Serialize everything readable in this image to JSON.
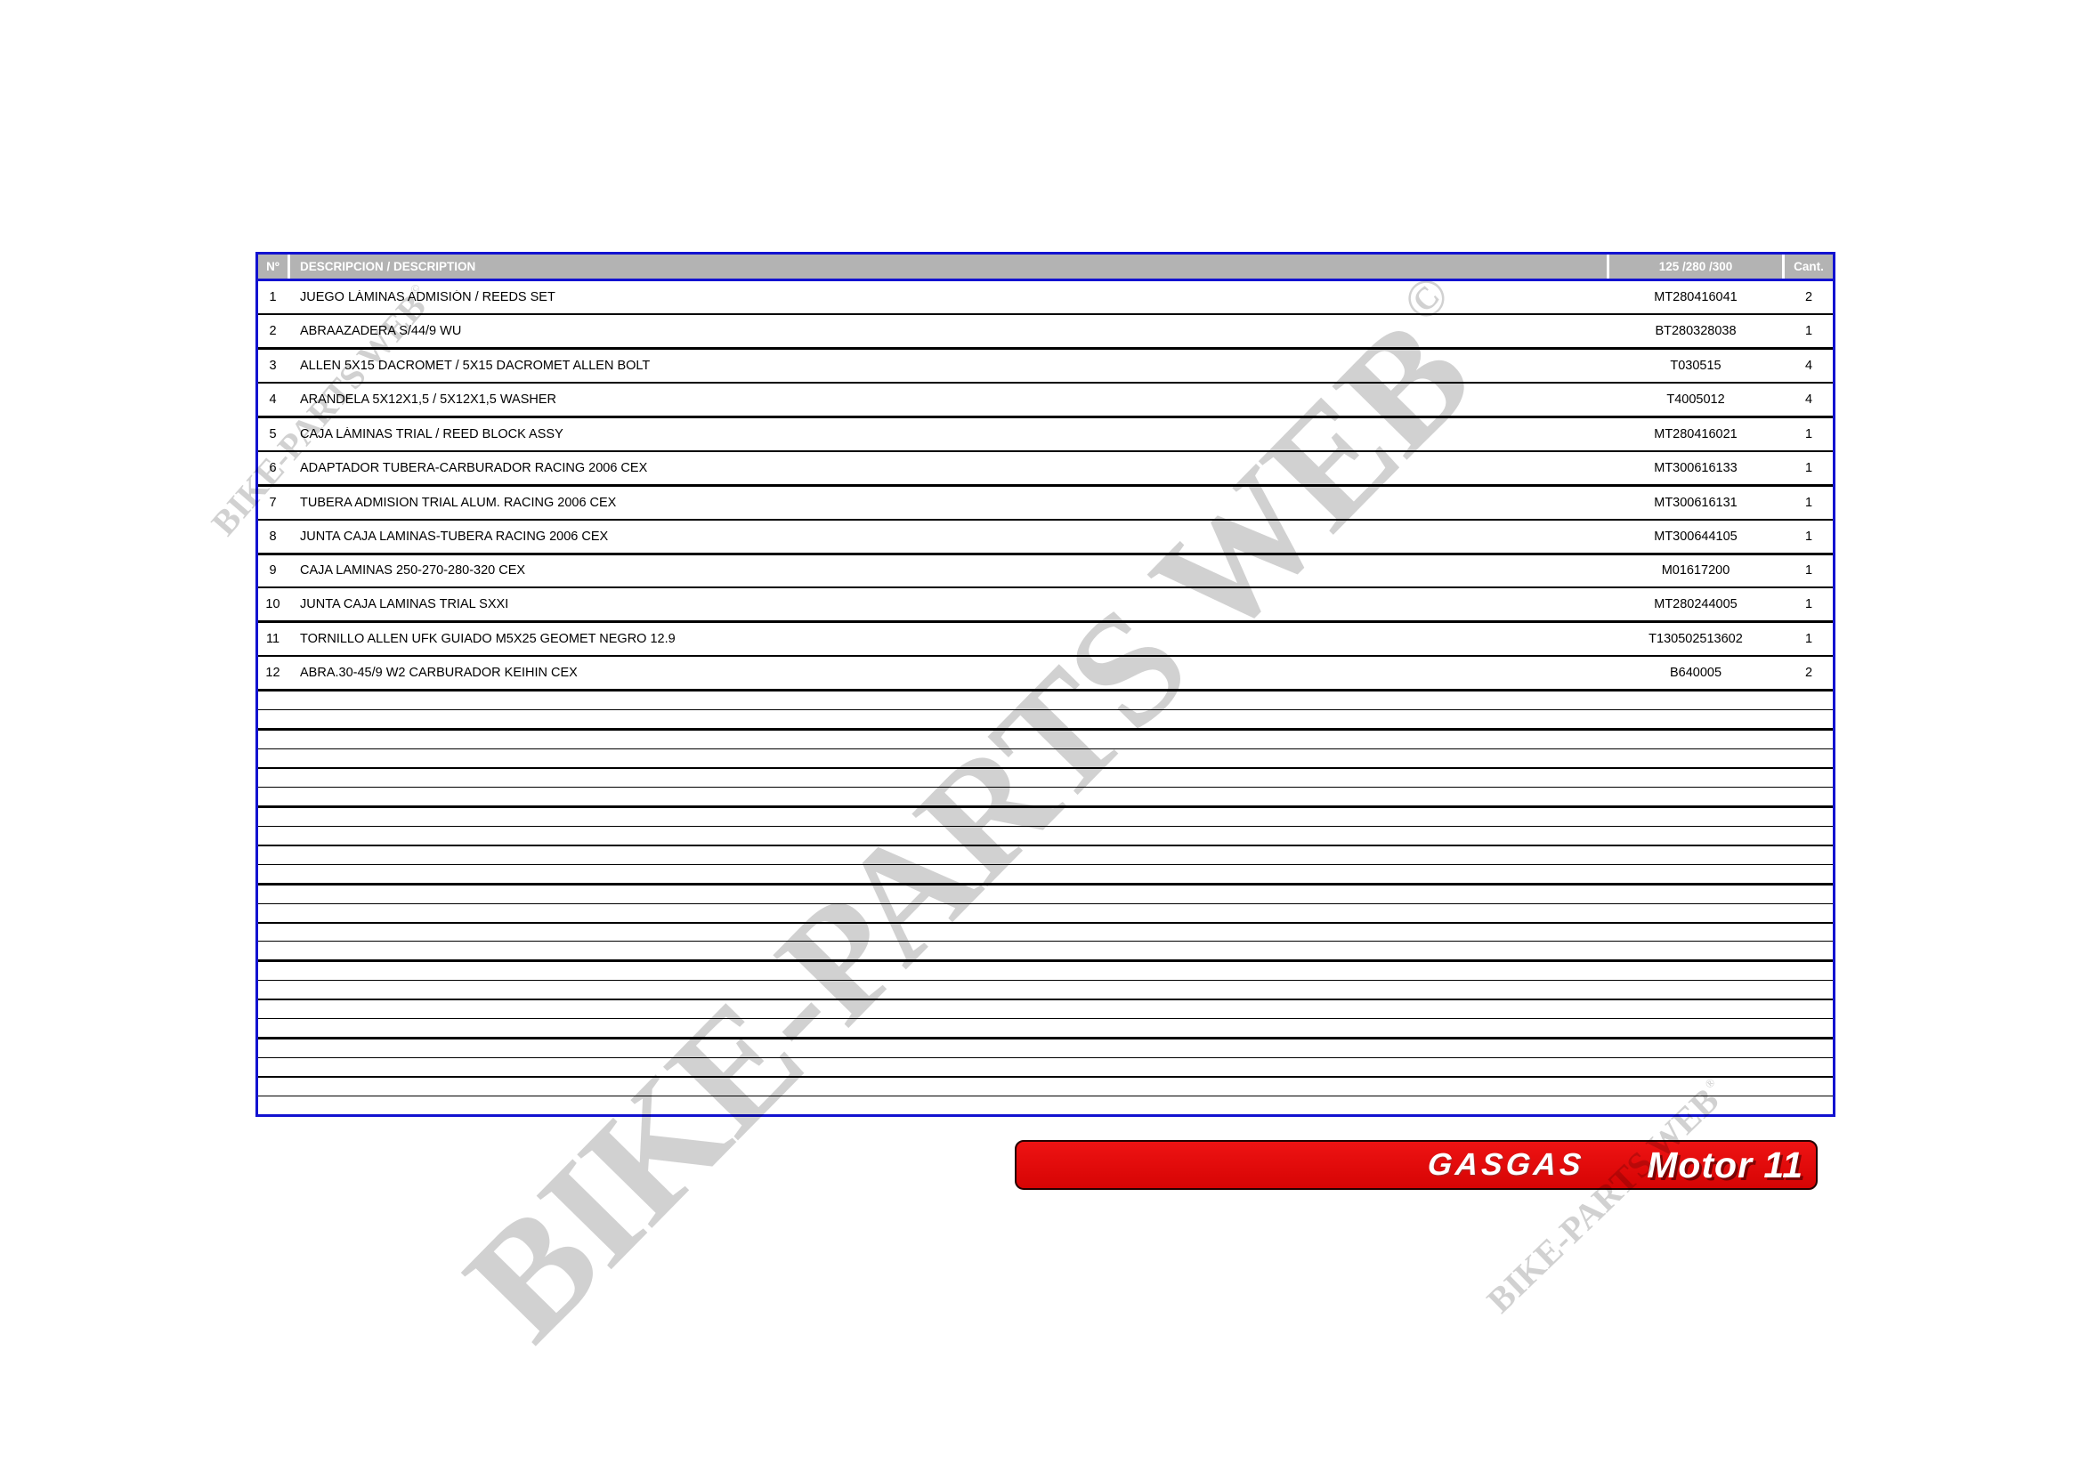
{
  "table": {
    "headers": {
      "num": "Nº",
      "description": "DESCRIPCION / DESCRIPTION",
      "ref": "125 /280 /300",
      "qty": "Cant."
    },
    "rows": [
      {
        "num": "1",
        "description": "JUEGO LÁMINAS ADMISIÓN / REEDS SET",
        "ref": "MT280416041",
        "qty": "2"
      },
      {
        "num": "2",
        "description": "ABRAAZADERA S/44/9 WU",
        "ref": "BT280328038",
        "qty": "1"
      },
      {
        "num": "3",
        "description": "ALLEN 5X15 DACROMET / 5X15 DACROMET ALLEN BOLT",
        "ref": "T030515",
        "qty": "4"
      },
      {
        "num": "4",
        "description": "ARANDELA 5X12X1,5 / 5X12X1,5 WASHER",
        "ref": "T4005012",
        "qty": "4"
      },
      {
        "num": "5",
        "description": "CAJA LÁMINAS TRIAL / REED BLOCK ASSY",
        "ref": "MT280416021",
        "qty": "1"
      },
      {
        "num": "6",
        "description": "ADAPTADOR TUBERA-CARBURADOR RACING 2006 CEX",
        "ref": "MT300616133",
        "qty": "1"
      },
      {
        "num": "7",
        "description": "TUBERA ADMISION TRIAL ALUM. RACING 2006 CEX",
        "ref": "MT300616131",
        "qty": "1"
      },
      {
        "num": "8",
        "description": "JUNTA CAJA LAMINAS-TUBERA RACING 2006 CEX",
        "ref": "MT300644105",
        "qty": "1"
      },
      {
        "num": "9",
        "description": "CAJA LAMINAS 250-270-280-320 CEX",
        "ref": "M01617200",
        "qty": "1"
      },
      {
        "num": "10",
        "description": "JUNTA CAJA LAMINAS TRIAL SXXI",
        "ref": "MT280244005",
        "qty": "1"
      },
      {
        "num": "11",
        "description": "TORNILLO ALLEN UFK GUIADO M5X25 GEOMET NEGRO 12.9",
        "ref": "T130502513602",
        "qty": "1"
      },
      {
        "num": "12",
        "description": "ABRA.30-45/9 W2 CARBURADOR KEIHIN CEX",
        "ref": "B640005",
        "qty": "2"
      }
    ],
    "empty_row_count": 22
  },
  "banner": {
    "brand": "GASGAS",
    "title": "Motor 11"
  },
  "watermarks": {
    "large_text": "BIKE-PARTS WEB",
    "large_mark": "©",
    "top_left_text": "BIKE-PARTS WEB",
    "top_left_mark": "©",
    "bottom_right_text": "BIKE-PARTS WEB",
    "bottom_right_mark": "®"
  },
  "colors": {
    "table_border": "#1212d0",
    "header_bg": "#b3b3b3",
    "banner_red": "#e10808",
    "row_line": "#000000",
    "header_text": "#ffffff",
    "watermark_gray": "rgba(0,0,0,0.18)"
  }
}
